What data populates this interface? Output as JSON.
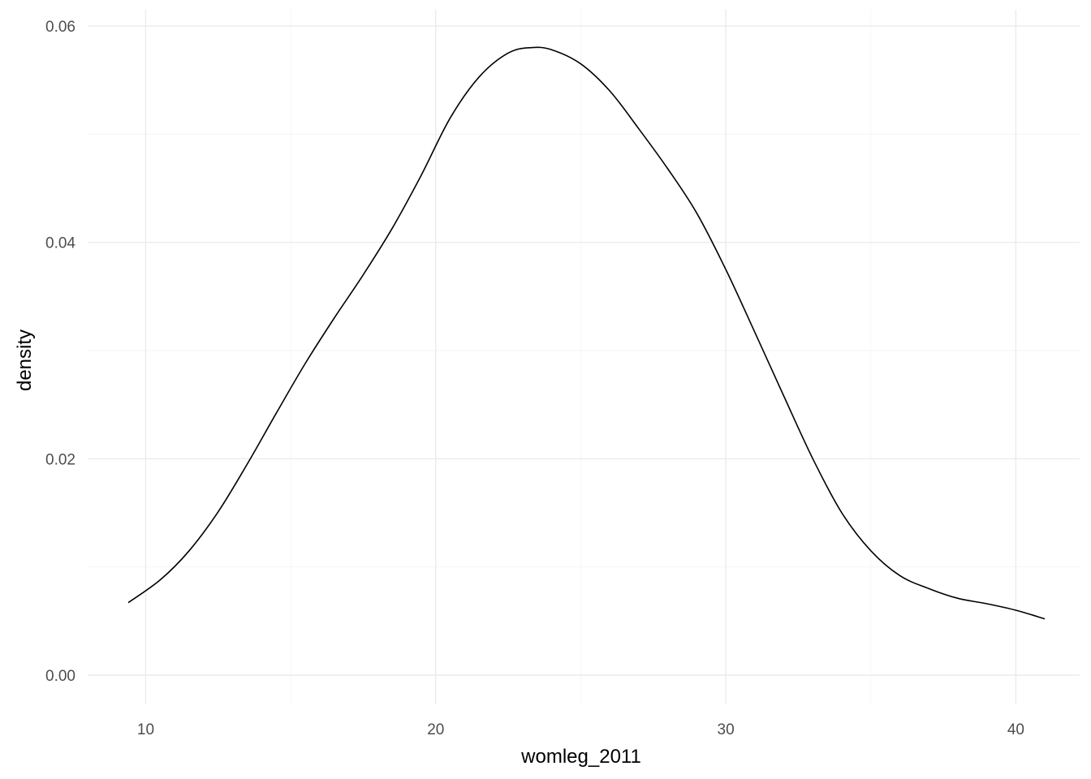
{
  "chart_data": {
    "type": "line",
    "title": "",
    "xlabel": "womleg_2011",
    "ylabel": "density",
    "xlim": [
      8.0,
      42.2
    ],
    "ylim": [
      -0.0027,
      0.0615
    ],
    "x_ticks": [
      10,
      20,
      30,
      40
    ],
    "x_tick_labels": [
      "10",
      "20",
      "30",
      "40"
    ],
    "x_minor_ticks": [
      15,
      25,
      35
    ],
    "y_ticks": [
      0.0,
      0.02,
      0.04,
      0.06
    ],
    "y_tick_labels": [
      "0.00",
      "0.02",
      "0.04",
      "0.06"
    ],
    "y_minor_ticks": [
      0.01,
      0.03,
      0.05
    ],
    "grid": true,
    "legend": "none",
    "series": [
      {
        "color": "#000000",
        "points": [
          [
            9.4,
            0.0067
          ],
          [
            10.5,
            0.0088
          ],
          [
            11.5,
            0.0115
          ],
          [
            12.5,
            0.0151
          ],
          [
            13.5,
            0.0195
          ],
          [
            14.5,
            0.0242
          ],
          [
            15.5,
            0.0288
          ],
          [
            16.5,
            0.033
          ],
          [
            17.5,
            0.037
          ],
          [
            18.5,
            0.0413
          ],
          [
            19.5,
            0.0462
          ],
          [
            20.5,
            0.0515
          ],
          [
            21.5,
            0.0553
          ],
          [
            22.5,
            0.0575
          ],
          [
            23.3,
            0.058
          ],
          [
            24.0,
            0.0578
          ],
          [
            25.0,
            0.0565
          ],
          [
            26.0,
            0.054
          ],
          [
            27.0,
            0.0505
          ],
          [
            28.0,
            0.0468
          ],
          [
            29.0,
            0.0427
          ],
          [
            30.0,
            0.0375
          ],
          [
            31.0,
            0.0317
          ],
          [
            32.0,
            0.0258
          ],
          [
            33.0,
            0.02
          ],
          [
            34.0,
            0.015
          ],
          [
            35.0,
            0.0115
          ],
          [
            36.0,
            0.0092
          ],
          [
            37.0,
            0.008
          ],
          [
            38.0,
            0.0071
          ],
          [
            39.0,
            0.0066
          ],
          [
            40.0,
            0.006
          ],
          [
            41.0,
            0.0052
          ]
        ]
      }
    ]
  }
}
